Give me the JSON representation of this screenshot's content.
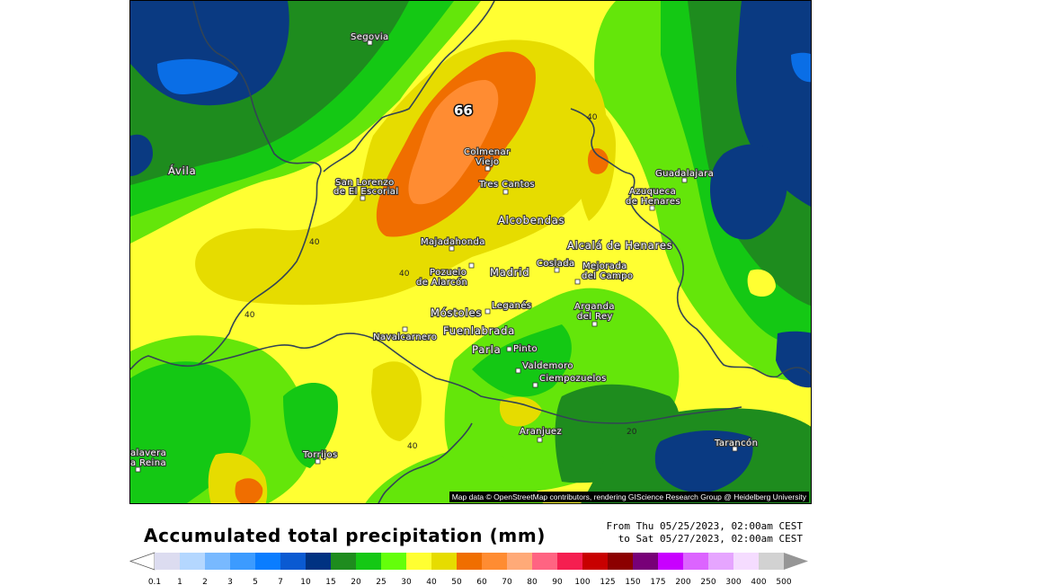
{
  "title": "Accumulated total precipitation (mm)",
  "date_range": {
    "from": "From Thu 05/25/2023, 02:00am CEST",
    "to": "to Sat 05/27/2023, 02:00am CEST"
  },
  "attribution": "Map data © OpenStreetMap contributors, rendering GIScience Research Group @ Heidelberg University",
  "max_value": "66",
  "places": {
    "segovia": "Segovia",
    "avila": "Ávila",
    "colmenar": "Colmenar",
    "viejo": "Viejo",
    "san_lorenzo_1": "San Lorenzo",
    "san_lorenzo_2": "de El Escorial",
    "tres_cantos": "Tres Cantos",
    "guadalajara": "Guadalajara",
    "azuqueca_1": "Azuqueca",
    "azuqueca_2": "de Henares",
    "alcobendas": "Alcobendas",
    "majadahonda": "Majadahonda",
    "alcala": "Alcalá de Henares",
    "pozuelo_1": "Pozuelo",
    "pozuelo_2": "de Alarcón",
    "madrid": "Madrid",
    "coslada": "Coslada",
    "mejorada_1": "Mejorada",
    "mejorada_2": "del Campo",
    "leganes": "Leganés",
    "mostoles": "Móstoles",
    "arganda_1": "Arganda",
    "arganda_2": "del Rey",
    "navalcarnero": "Navalcarnero",
    "fuenlabrada": "Fuenlabrada",
    "parla": "Parla",
    "pinto": "Pinto",
    "valdemoro": "Valdemoro",
    "ciempozuelos": "Ciempozuelos",
    "aranjuez": "Aranjuez",
    "tarancon": "Tarancón",
    "torrijos": "Torrijos",
    "talavera_1": "alavera",
    "talavera_2": "a Reina"
  },
  "contour_labels": [
    "40",
    "40",
    "40",
    "40",
    "40",
    "20"
  ],
  "colorbar": {
    "ticks": [
      "0.1",
      "1",
      "2",
      "3",
      "5",
      "7",
      "10",
      "15",
      "20",
      "25",
      "30",
      "40",
      "50",
      "60",
      "70",
      "80",
      "90",
      "100",
      "125",
      "150",
      "175",
      "200",
      "250",
      "300",
      "400",
      "500"
    ],
    "colors": [
      "#dcdcf0",
      "#b4d7ff",
      "#78b9ff",
      "#3c9bff",
      "#0a7dff",
      "#0a5ad2",
      "#003282",
      "#1e8c1e",
      "#14c814",
      "#64ff0a",
      "#ffff32",
      "#e6dc00",
      "#f06e00",
      "#ff8c32",
      "#ffaa78",
      "#ff6482",
      "#f51e50",
      "#c80000",
      "#8c0000",
      "#780078",
      "#c800ff",
      "#dc64ff",
      "#e6a5ff",
      "#f5dcff",
      "#d2d2d2"
    ],
    "low_color": "#ffffff",
    "high_color": "#969696"
  },
  "palette": {
    "dark_blue": "#0a3a82",
    "blue": "#0a6ee6",
    "dark_green": "#1e8c1e",
    "green": "#14c814",
    "light_green": "#64e60a",
    "yellow": "#ffff32",
    "olive_yellow": "#e6dc00",
    "dark_orange": "#f06e00",
    "orange": "#ff8c32"
  }
}
